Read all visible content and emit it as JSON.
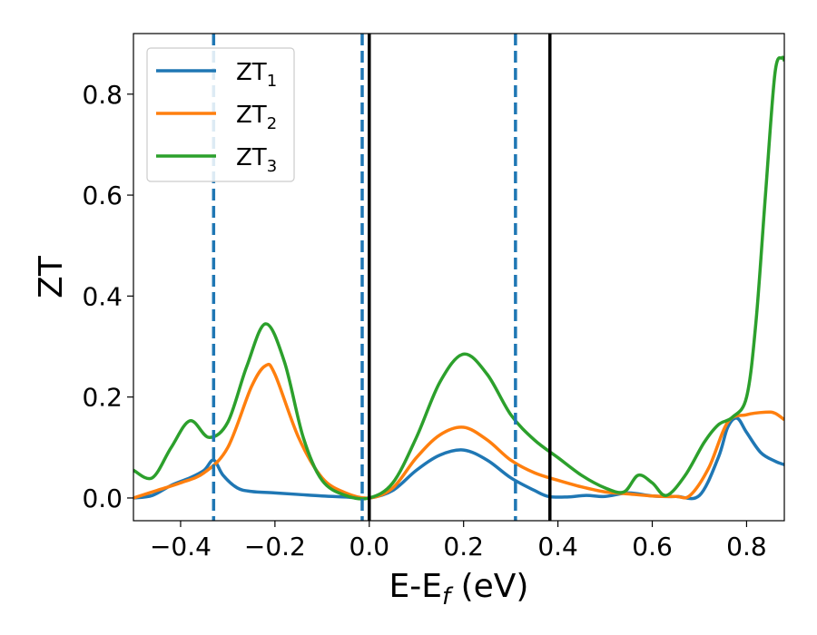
{
  "chart_data": {
    "type": "line",
    "xlabel_main": "E-E",
    "xlabel_sub": "f",
    "xlabel_unit": " (eV)",
    "ylabel": "ZT",
    "xlim": [
      -0.5,
      0.88
    ],
    "ylim": [
      -0.045,
      0.92
    ],
    "xticks": [
      -0.4,
      -0.2,
      0.0,
      0.2,
      0.4,
      0.6,
      0.8
    ],
    "xtick_labels": [
      "−0.4",
      "−0.2",
      "0.0",
      "0.2",
      "0.4",
      "0.6",
      "0.8"
    ],
    "yticks": [
      0.0,
      0.2,
      0.4,
      0.6,
      0.8
    ],
    "ytick_labels": [
      "0.0",
      "0.2",
      "0.4",
      "0.6",
      "0.8"
    ],
    "legend_position": "top-left",
    "grid": false,
    "vlines_dashed": [
      -0.33,
      -0.015,
      0.31
    ],
    "vlines_solid": [
      0.0,
      0.383
    ],
    "dashed_color": "#1f77b4",
    "solid_color": "#000000",
    "series": [
      {
        "name": "ZT",
        "subscript": "1",
        "color": "#1f77b4",
        "x": [
          -0.5,
          -0.46,
          -0.42,
          -0.38,
          -0.35,
          -0.33,
          -0.31,
          -0.28,
          -0.25,
          -0.2,
          -0.15,
          -0.1,
          -0.05,
          0.0,
          0.05,
          0.1,
          0.15,
          0.2,
          0.25,
          0.3,
          0.35,
          0.38,
          0.42,
          0.46,
          0.5,
          0.55,
          0.6,
          0.65,
          0.7,
          0.74,
          0.76,
          0.78,
          0.8,
          0.83,
          0.86,
          0.88
        ],
        "y": [
          0.0,
          0.005,
          0.025,
          0.04,
          0.055,
          0.075,
          0.045,
          0.02,
          0.013,
          0.01,
          0.007,
          0.004,
          0.002,
          0.0,
          0.015,
          0.055,
          0.085,
          0.095,
          0.075,
          0.04,
          0.015,
          0.003,
          0.002,
          0.005,
          0.003,
          0.01,
          0.004,
          0.003,
          0.005,
          0.08,
          0.14,
          0.158,
          0.13,
          0.09,
          0.073,
          0.066
        ]
      },
      {
        "name": "ZT",
        "subscript": "2",
        "color": "#ff7f0e",
        "x": [
          -0.5,
          -0.45,
          -0.4,
          -0.35,
          -0.3,
          -0.25,
          -0.22,
          -0.2,
          -0.15,
          -0.1,
          -0.05,
          0.0,
          0.05,
          0.1,
          0.15,
          0.2,
          0.25,
          0.3,
          0.35,
          0.4,
          0.45,
          0.5,
          0.55,
          0.6,
          0.65,
          0.68,
          0.72,
          0.76,
          0.8,
          0.84,
          0.86,
          0.88
        ],
        "y": [
          0.0,
          0.015,
          0.03,
          0.05,
          0.1,
          0.22,
          0.262,
          0.245,
          0.12,
          0.04,
          0.01,
          0.0,
          0.02,
          0.08,
          0.125,
          0.14,
          0.115,
          0.075,
          0.05,
          0.035,
          0.022,
          0.012,
          0.008,
          0.004,
          0.003,
          0.005,
          0.06,
          0.15,
          0.165,
          0.17,
          0.168,
          0.155
        ]
      },
      {
        "name": "ZT",
        "subscript": "3",
        "color": "#2ca02c",
        "x": [
          -0.5,
          -0.46,
          -0.42,
          -0.38,
          -0.34,
          -0.3,
          -0.26,
          -0.22,
          -0.18,
          -0.14,
          -0.1,
          -0.05,
          0.0,
          0.05,
          0.1,
          0.15,
          0.2,
          0.25,
          0.3,
          0.35,
          0.4,
          0.45,
          0.5,
          0.54,
          0.57,
          0.6,
          0.63,
          0.67,
          0.71,
          0.74,
          0.77,
          0.8,
          0.82,
          0.84,
          0.86,
          0.875,
          0.88
        ],
        "y": [
          0.055,
          0.04,
          0.1,
          0.153,
          0.12,
          0.15,
          0.26,
          0.345,
          0.27,
          0.12,
          0.035,
          0.005,
          0.0,
          0.03,
          0.12,
          0.23,
          0.285,
          0.245,
          0.165,
          0.115,
          0.08,
          0.045,
          0.02,
          0.012,
          0.045,
          0.03,
          0.005,
          0.045,
          0.11,
          0.145,
          0.16,
          0.2,
          0.35,
          0.6,
          0.84,
          0.872,
          0.866
        ]
      }
    ]
  }
}
